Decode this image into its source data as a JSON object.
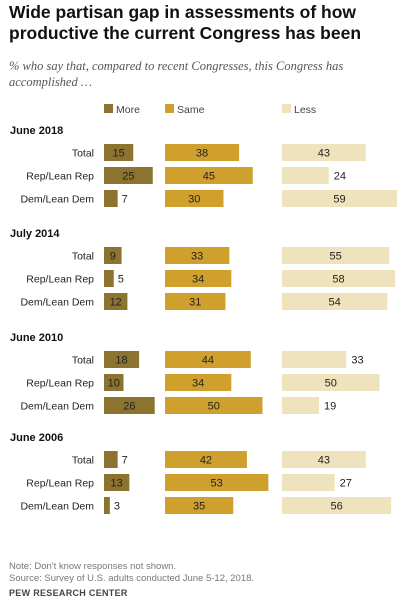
{
  "title": "Wide partisan gap in assessments of how productive the current Congress has been",
  "subtitle": "% who say that, compared to recent Congresses, this Congress has accomplished …",
  "colors": {
    "more": "#8c7330",
    "same": "#cfa02e",
    "less": "#efe3bd"
  },
  "chart_data": {
    "type": "bar",
    "orientation": "horizontal",
    "stacked_panels": true,
    "series_names": [
      "More",
      "Same",
      "Less"
    ],
    "groups": [
      {
        "title": "June 2018",
        "rows": [
          {
            "label": "Total",
            "values": [
              15,
              38,
              43
            ]
          },
          {
            "label": "Rep/Lean Rep",
            "values": [
              25,
              45,
              24
            ]
          },
          {
            "label": "Dem/Lean Dem",
            "values": [
              7,
              30,
              59
            ]
          }
        ]
      },
      {
        "title": "July 2014",
        "rows": [
          {
            "label": "Total",
            "values": [
              9,
              33,
              55
            ]
          },
          {
            "label": "Rep/Lean Rep",
            "values": [
              5,
              34,
              58
            ]
          },
          {
            "label": "Dem/Lean Dem",
            "values": [
              12,
              31,
              54
            ]
          }
        ]
      },
      {
        "title": "June 2010",
        "rows": [
          {
            "label": "Total",
            "values": [
              18,
              44,
              33
            ]
          },
          {
            "label": "Rep/Lean Rep",
            "values": [
              10,
              34,
              50
            ]
          },
          {
            "label": "Dem/Lean Dem",
            "values": [
              26,
              50,
              19
            ]
          }
        ]
      },
      {
        "title": "June 2006",
        "rows": [
          {
            "label": "Total",
            "values": [
              7,
              42,
              43
            ]
          },
          {
            "label": "Rep/Lean Rep",
            "values": [
              13,
              53,
              27
            ]
          },
          {
            "label": "Dem/Lean Dem",
            "values": [
              3,
              35,
              56
            ]
          }
        ]
      }
    ]
  },
  "footer": {
    "note": "Note: Don't know responses not shown.",
    "source": "Source: Survey of U.S. adults conducted June 5-12, 2018.",
    "org": "PEW RESEARCH CENTER"
  }
}
